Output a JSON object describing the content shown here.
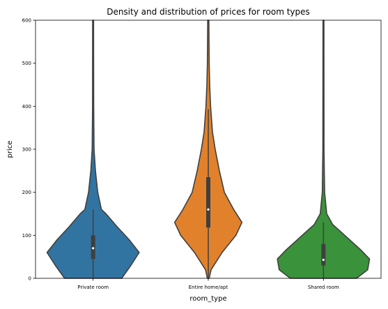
{
  "chart_data": {
    "type": "violin",
    "title": "Density and distribution of prices for room types",
    "xlabel": "room_type",
    "ylabel": "price",
    "ylim": [
      0,
      600
    ],
    "yticks": [
      0,
      100,
      200,
      300,
      400,
      500,
      600
    ],
    "categories": [
      "Private room",
      "Entire home/apt",
      "Shared room"
    ],
    "grid": false,
    "legend": "none",
    "series": [
      {
        "category": "Private room",
        "color": "#3274a1",
        "median": 70,
        "q1": 45,
        "q3": 100,
        "whisker_low": 0,
        "whisker_high": 160,
        "profile": [
          [
            0,
            0.62
          ],
          [
            30,
            0.82
          ],
          [
            60,
            1.0
          ],
          [
            90,
            0.78
          ],
          [
            120,
            0.52
          ],
          [
            150,
            0.28
          ],
          [
            160,
            0.18
          ],
          [
            200,
            0.1
          ],
          [
            250,
            0.05
          ],
          [
            300,
            0.02
          ],
          [
            400,
            0.012
          ],
          [
            600,
            0.01
          ]
        ]
      },
      {
        "category": "Entire home/apt",
        "color": "#e1812c",
        "median": 160,
        "q1": 118,
        "q3": 235,
        "whisker_low": 0,
        "whisker_high": 393,
        "profile": [
          [
            0,
            0.02
          ],
          [
            20,
            0.06
          ],
          [
            60,
            0.3
          ],
          [
            100,
            0.6
          ],
          [
            130,
            0.73
          ],
          [
            160,
            0.55
          ],
          [
            200,
            0.35
          ],
          [
            250,
            0.24
          ],
          [
            300,
            0.15
          ],
          [
            340,
            0.09
          ],
          [
            400,
            0.05
          ],
          [
            450,
            0.03
          ],
          [
            500,
            0.02
          ],
          [
            600,
            0.012
          ]
        ]
      },
      {
        "category": "Shared room",
        "color": "#3a923a",
        "median": 43,
        "q1": 30,
        "q3": 80,
        "whisker_low": 0,
        "whisker_high": 130,
        "profile": [
          [
            0,
            0.72
          ],
          [
            20,
            0.96
          ],
          [
            45,
            1.0
          ],
          [
            65,
            0.82
          ],
          [
            100,
            0.46
          ],
          [
            125,
            0.2
          ],
          [
            150,
            0.07
          ],
          [
            200,
            0.025
          ],
          [
            300,
            0.012
          ],
          [
            600,
            0.01
          ]
        ]
      }
    ]
  }
}
